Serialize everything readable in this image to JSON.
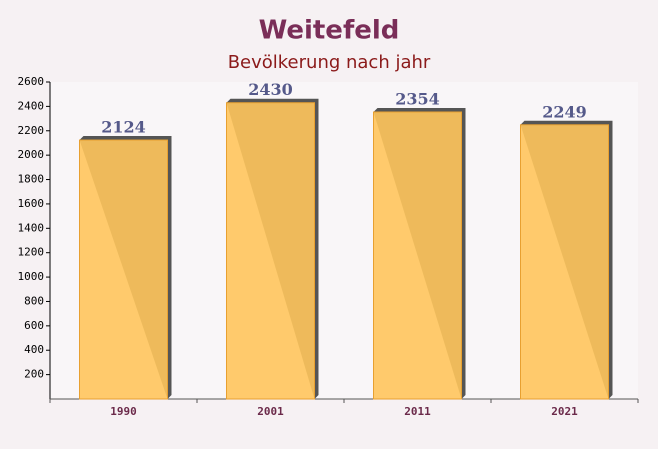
{
  "chart_data": {
    "type": "bar",
    "title": "Weitefeld",
    "subtitle": "Bevölkerung nach jahr",
    "categories": [
      "1990",
      "2001",
      "2011",
      "2021"
    ],
    "values": [
      2124,
      2430,
      2354,
      2249
    ],
    "color": "#ffc55c",
    "ylim": [
      0,
      2600
    ],
    "yticks": [
      200,
      400,
      600,
      800,
      1000,
      1200,
      1400,
      1600,
      1800,
      2000,
      2200,
      2400,
      2600
    ]
  }
}
